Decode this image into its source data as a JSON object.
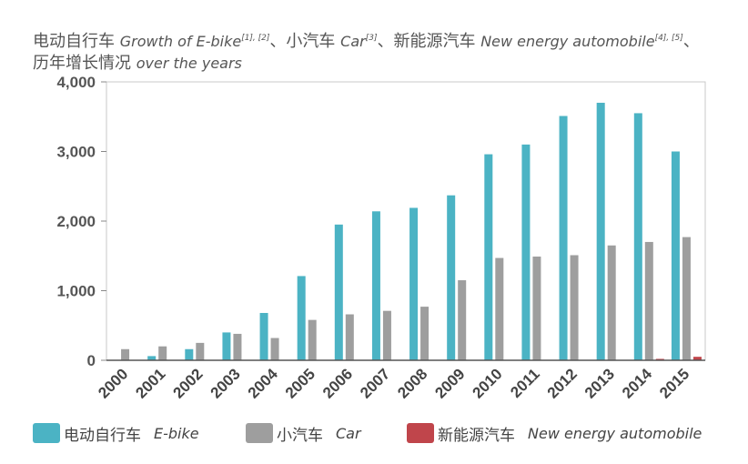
{
  "title": {
    "line1": [
      {
        "zh": "电动自行车",
        "en": "Growth of E-bike",
        "refs": "[1], [2]"
      },
      {
        "zh": "小汽车",
        "en": "Car",
        "refs": "[3]"
      },
      {
        "zh": "新能源汽车",
        "en": "New energy automobile",
        "refs": "[4], [5]"
      }
    ],
    "line2_zh": "历年增长情况",
    "line2_en": "over the years",
    "separator": "、"
  },
  "legend": [
    {
      "zh": "电动自行车",
      "en": "E-bike",
      "color": "#4BB3C4"
    },
    {
      "zh": "小汽车",
      "en": "Car",
      "color": "#9E9E9E"
    },
    {
      "zh": "新能源汽车",
      "en": "New energy automobile",
      "color": "#C0454B"
    }
  ],
  "chart_data": {
    "type": "bar",
    "categories": [
      "2000",
      "2001",
      "2002",
      "2003",
      "2004",
      "2005",
      "2006",
      "2007",
      "2008",
      "2009",
      "2010",
      "2011",
      "2012",
      "2013",
      "2014",
      "2015"
    ],
    "series": [
      {
        "name": "电动自行车 E-bike",
        "color": "#4BB3C4",
        "values": [
          0,
          60,
          160,
          400,
          680,
          1210,
          1950,
          2140,
          2190,
          2370,
          2960,
          3100,
          3510,
          3700,
          3550,
          3000
        ]
      },
      {
        "name": "小汽车 Car",
        "color": "#9E9E9E",
        "values": [
          160,
          200,
          250,
          380,
          320,
          580,
          660,
          710,
          770,
          1150,
          1470,
          1490,
          1510,
          1650,
          1700,
          1770
        ]
      },
      {
        "name": "新能源汽车 New energy automobile",
        "color": "#C0454B",
        "values": [
          0,
          0,
          0,
          0,
          0,
          0,
          0,
          0,
          0,
          0,
          0,
          0,
          0,
          0,
          20,
          50
        ]
      }
    ],
    "ylim": [
      0,
      4000
    ],
    "yticks": [
      0,
      1000,
      2000,
      3000,
      4000
    ],
    "ytick_labels": [
      "0",
      "1,000",
      "2,000",
      "3,000",
      "4,000"
    ],
    "xlabel": "",
    "ylabel": "",
    "grid": false,
    "legend_position": "bottom"
  }
}
